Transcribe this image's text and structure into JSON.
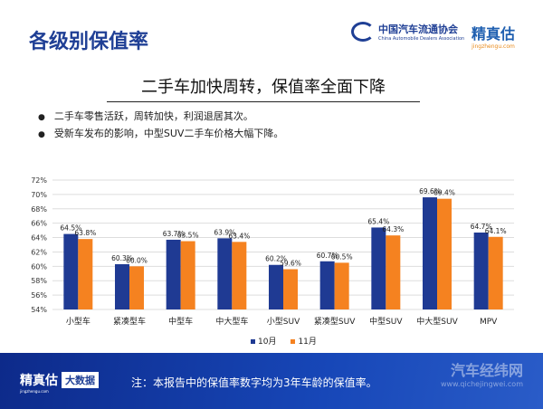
{
  "header": {
    "title": "各级别保值率",
    "logo_cada": {
      "cn": "中国汽车流通协会",
      "en": "China Automobile Dealers Association"
    },
    "logo_jzg": {
      "cn": "精真估",
      "en": "jingzhengu.com"
    }
  },
  "subtitle": "二手车加快周转，保值率全面下降",
  "bullets": [
    "二手车零售活跃，周转加快，利润退居其次。",
    "受新车发布的影响，中型SUV二手车价格大幅下降。"
  ],
  "chart_data": {
    "type": "bar",
    "categories": [
      "小型车",
      "紧凑型车",
      "中型车",
      "中大型车",
      "小型SUV",
      "紧凑型SUV",
      "中型SUV",
      "中大型SUV",
      "MPV"
    ],
    "series": [
      {
        "name": "10月",
        "color": "#1f3a93",
        "values": [
          64.5,
          60.3,
          63.7,
          63.9,
          60.2,
          60.7,
          65.4,
          69.6,
          64.7
        ],
        "labels": [
          "64.5%",
          "60.3%",
          "63.7%",
          "63.9%",
          "60.2%",
          "60.7%",
          "65.4%",
          "69.6%",
          "64.7%"
        ]
      },
      {
        "name": "11月",
        "color": "#f58220",
        "values": [
          63.8,
          60.0,
          63.5,
          63.4,
          59.6,
          60.5,
          64.3,
          69.4,
          64.1
        ],
        "labels": [
          "63.8%",
          "60.0%",
          "63.5%",
          "63.4%",
          "59.6%",
          "60.5%",
          "64.3%",
          "69.4%",
          "64.1%"
        ]
      }
    ],
    "yticks": [
      "54%",
      "56%",
      "58%",
      "60%",
      "62%",
      "64%",
      "66%",
      "68%",
      "70%",
      "72%"
    ],
    "ylim": [
      54,
      72
    ],
    "grid": true,
    "legend": "bottom"
  },
  "footer": {
    "logo": "精真估",
    "logo_en": "jingzhengu.com",
    "badge": "大数据",
    "note": "注：本报告中的保值率数字均为3年车龄的保值率。",
    "watermark": "汽车经纬网",
    "watermark_url": "www.qichejingwei.com"
  }
}
